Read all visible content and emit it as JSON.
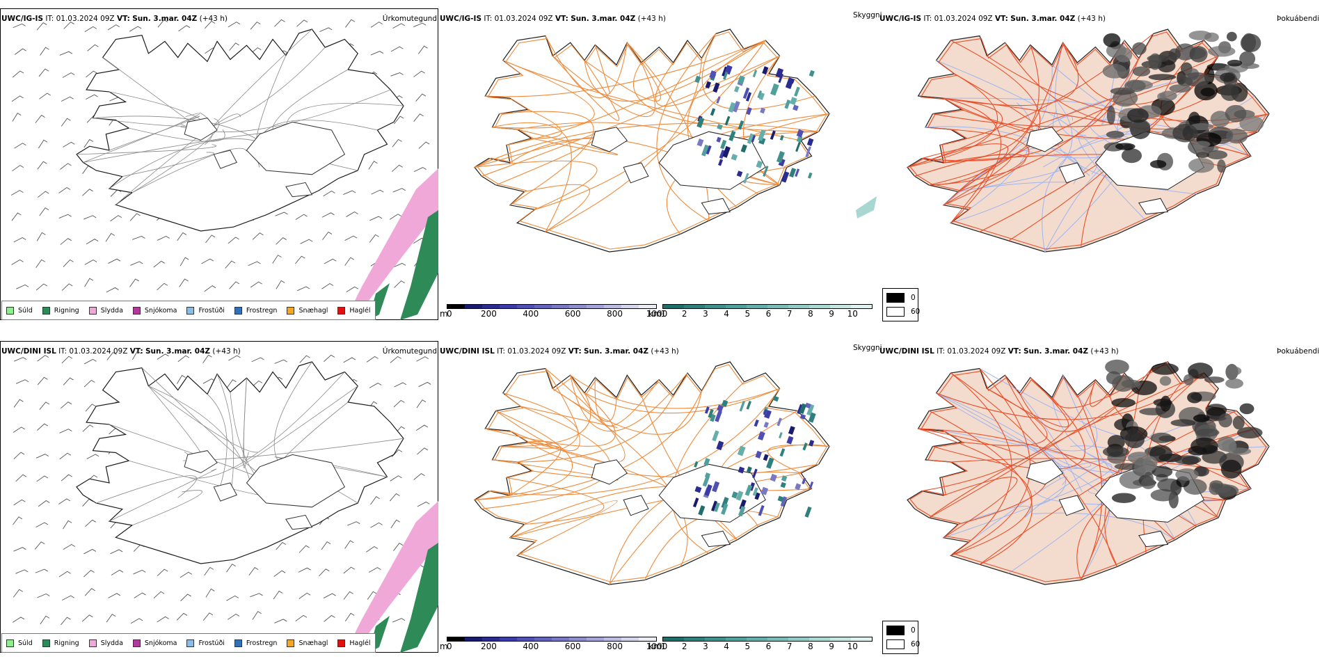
{
  "rows": [
    {
      "model": "UWC/IG-IS",
      "it_label": "IT:",
      "it_value": "01.03.2024 09Z",
      "vt_label": "VT:",
      "vt_value": "Sun. 3.mar. 04Z",
      "lead": "(+43 h)",
      "panels": {
        "precip_type": "Úrkomutegund",
        "visibility": "Skyggni",
        "fog": "Þokuábendi"
      }
    },
    {
      "model": "UWC/DINI ISL",
      "it_label": "IT:",
      "it_value": "01.03.2024 09Z",
      "vt_label": "VT:",
      "vt_value": "Sun. 3.mar. 04Z",
      "lead": "(+43 h)",
      "panels": {
        "precip_type": "Úrkomutegund",
        "visibility": "Skyggni",
        "fog": "Þokuábendi"
      }
    }
  ],
  "precip_legend": [
    {
      "label": "Súld",
      "color": "#90ee90"
    },
    {
      "label": "Rigning",
      "color": "#2e8b57"
    },
    {
      "label": "Slydda",
      "color": "#f0a8d8"
    },
    {
      "label": "Snjókoma",
      "color": "#b03a9a"
    },
    {
      "label": "Frostúði",
      "color": "#87bde8"
    },
    {
      "label": "Frostregn",
      "color": "#3470b8"
    },
    {
      "label": "Snæhagl",
      "color": "#f5a623"
    },
    {
      "label": "Haglél",
      "color": "#e01010"
    }
  ],
  "vis_cbar_m": {
    "unit": "m",
    "ticks": [
      "0",
      "200",
      "400",
      "600",
      "800",
      "1000"
    ],
    "colors": [
      "#000000",
      "#1a1a6e",
      "#2b2b90",
      "#3c3ca8",
      "#5050b4",
      "#6464bc",
      "#7878c4",
      "#8e8ecc",
      "#a4a4d6",
      "#bcbce0",
      "#d6d6ea",
      "#ececf4"
    ]
  },
  "vis_cbar_km": {
    "unit": "km",
    "ticks": [
      "1",
      "2",
      "3",
      "4",
      "5",
      "6",
      "7",
      "8",
      "9",
      "10"
    ],
    "colors": [
      "#1f6e6a",
      "#2f807c",
      "#40908c",
      "#52a09b",
      "#66aeaa",
      "#7cbcb8",
      "#94cac6",
      "#acd8d4",
      "#c6e6e2",
      "#e0f2f0"
    ]
  },
  "fog_legend": [
    {
      "label": "0",
      "color": "#000000"
    },
    {
      "label": "60",
      "color": "#ffffff"
    }
  ],
  "colors": {
    "coast": "#1a1a1a",
    "roads_vis": "#ef8a3a",
    "roads_fog": "#e8502a",
    "rivers_fog": "#9fb4f0",
    "land_fog": "#f3dccd",
    "glacier_fill": "#ffffff",
    "snow_pink": "#f0a8d8",
    "rain_green": "#2e8b57"
  }
}
